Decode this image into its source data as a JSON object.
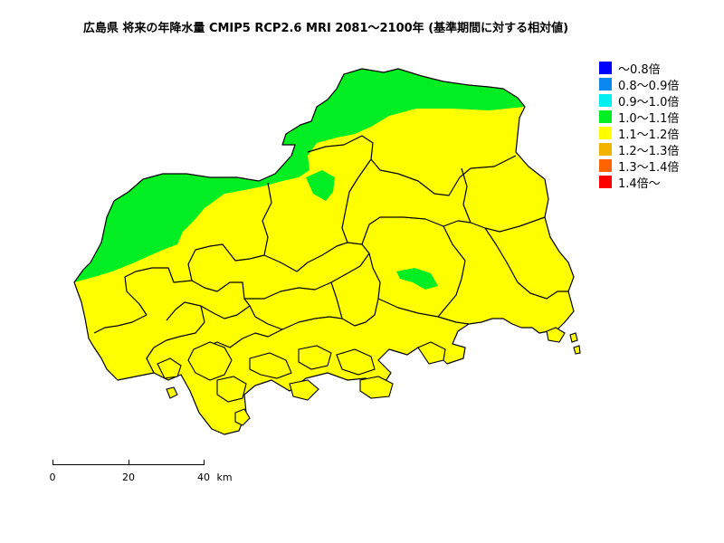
{
  "title": "広島県 将来の年降水量 CMIP5 RCP2.6 MRI 2081～2100年 (基準期間に対する相対値)",
  "colors": {
    "ratio_1_0_1_1": "#00ee22",
    "ratio_1_1_1_2": "#ffff00",
    "border": "#000000"
  },
  "legend": [
    {
      "label": "～0.8倍",
      "color": "#0000ff"
    },
    {
      "label": "0.8～0.9倍",
      "color": "#0a88f0"
    },
    {
      "label": "0.9～1.0倍",
      "color": "#00f0f0"
    },
    {
      "label": "1.0～1.1倍",
      "color": "#00ee22"
    },
    {
      "label": "1.1～1.2倍",
      "color": "#ffff00"
    },
    {
      "label": "1.2～1.3倍",
      "color": "#f2b200"
    },
    {
      "label": "1.3～1.4倍",
      "color": "#ff6400"
    },
    {
      "label": "1.4倍～",
      "color": "#ff0000"
    }
  ],
  "scalebar": {
    "ticks": [
      "0",
      "20",
      "40"
    ],
    "unit": "km"
  }
}
